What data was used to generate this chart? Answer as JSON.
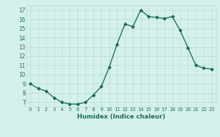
{
  "x": [
    0,
    1,
    2,
    3,
    4,
    5,
    6,
    7,
    8,
    9,
    10,
    11,
    12,
    13,
    14,
    15,
    16,
    17,
    18,
    19,
    20,
    21,
    22,
    23
  ],
  "y": [
    9.0,
    8.5,
    8.2,
    7.5,
    7.0,
    6.8,
    6.8,
    7.0,
    7.8,
    8.7,
    10.8,
    13.3,
    15.5,
    15.2,
    17.0,
    16.3,
    16.2,
    16.1,
    16.3,
    14.8,
    12.9,
    11.0,
    10.7,
    10.6
  ],
  "xlabel": "Humidex (Indice chaleur)",
  "ylabel": "",
  "xlim": [
    -0.5,
    23.5
  ],
  "ylim": [
    6.5,
    17.5
  ],
  "yticks": [
    7,
    8,
    9,
    10,
    11,
    12,
    13,
    14,
    15,
    16,
    17
  ],
  "xticks": [
    0,
    1,
    2,
    3,
    4,
    5,
    6,
    7,
    8,
    9,
    10,
    11,
    12,
    13,
    14,
    15,
    16,
    17,
    18,
    19,
    20,
    21,
    22,
    23
  ],
  "xtick_labels": [
    "0",
    "1",
    "2",
    "3",
    "4",
    "5",
    "6",
    "7",
    "8",
    "9",
    "10",
    "11",
    "12",
    "13",
    "14",
    "15",
    "16",
    "17",
    "18",
    "19",
    "20",
    "21",
    "22",
    "23"
  ],
  "line_color": "#1a6b5a",
  "marker": "D",
  "marker_size": 2,
  "bg_color": "#d4f0ec",
  "grid_color": "#c0dcd8",
  "axes_bg": "#d4f0ec"
}
